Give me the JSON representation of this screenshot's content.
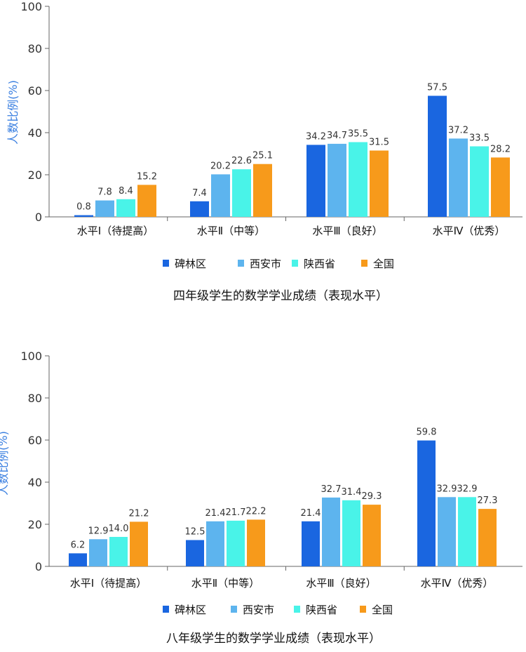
{
  "charts": [
    {
      "ylabel": "人数比例(%)",
      "legend": [
        "碑林区",
        "西安市",
        "陕西省",
        "全国"
      ],
      "caption": "四年级学生的数学学业成绩（表现水平）"
    },
    {
      "ylabel": "人数比例(%)",
      "legend": [
        "碑林区",
        "西安市",
        "陕西省",
        "全国"
      ],
      "caption": "八年级学生的数学学业成绩（表现水平）"
    }
  ],
  "colors": {
    "碑林区": "#1a66e0",
    "西安市": "#5db4ee",
    "陕西省": "#49f3e8",
    "全国": "#f79a1b",
    "axis": "#666666",
    "ylabel": "#3a7fe0"
  },
  "chart_data": [
    {
      "type": "bar",
      "title": "四年级学生的数学学业成绩（表现水平）",
      "xlabel": "",
      "ylabel": "人数比例(%)",
      "ylim": [
        0,
        100
      ],
      "yticks": [
        0,
        20,
        40,
        60,
        80,
        100
      ],
      "grid": false,
      "legend_position": "bottom",
      "categories": [
        "水平Ⅰ（待提高）",
        "水平Ⅱ（中等）",
        "水平Ⅲ（良好）",
        "水平Ⅳ（优秀）"
      ],
      "series": [
        {
          "name": "碑林区",
          "values": [
            0.8,
            7.4,
            34.2,
            57.5
          ]
        },
        {
          "name": "西安市",
          "values": [
            7.8,
            20.2,
            34.7,
            37.2
          ]
        },
        {
          "name": "陕西省",
          "values": [
            8.4,
            22.6,
            35.5,
            33.5
          ]
        },
        {
          "name": "全国",
          "values": [
            15.2,
            25.1,
            31.5,
            28.2
          ]
        }
      ]
    },
    {
      "type": "bar",
      "title": "八年级学生的数学学业成绩（表现水平）",
      "xlabel": "",
      "ylabel": "人数比例(%)",
      "ylim": [
        0,
        100
      ],
      "yticks": [
        0,
        20,
        40,
        60,
        80,
        100
      ],
      "grid": false,
      "legend_position": "bottom",
      "categories": [
        "水平Ⅰ（待提高）",
        "水平Ⅱ（中等）",
        "水平Ⅲ（良好）",
        "水平Ⅳ（优秀）"
      ],
      "series": [
        {
          "name": "碑林区",
          "values": [
            6.2,
            12.5,
            21.4,
            59.8
          ]
        },
        {
          "name": "西安市",
          "values": [
            12.9,
            21.4,
            32.7,
            32.9
          ]
        },
        {
          "name": "陕西省",
          "values": [
            14.0,
            21.7,
            31.4,
            32.9
          ]
        },
        {
          "name": "全国",
          "values": [
            21.2,
            22.2,
            29.3,
            27.3
          ]
        }
      ]
    }
  ]
}
